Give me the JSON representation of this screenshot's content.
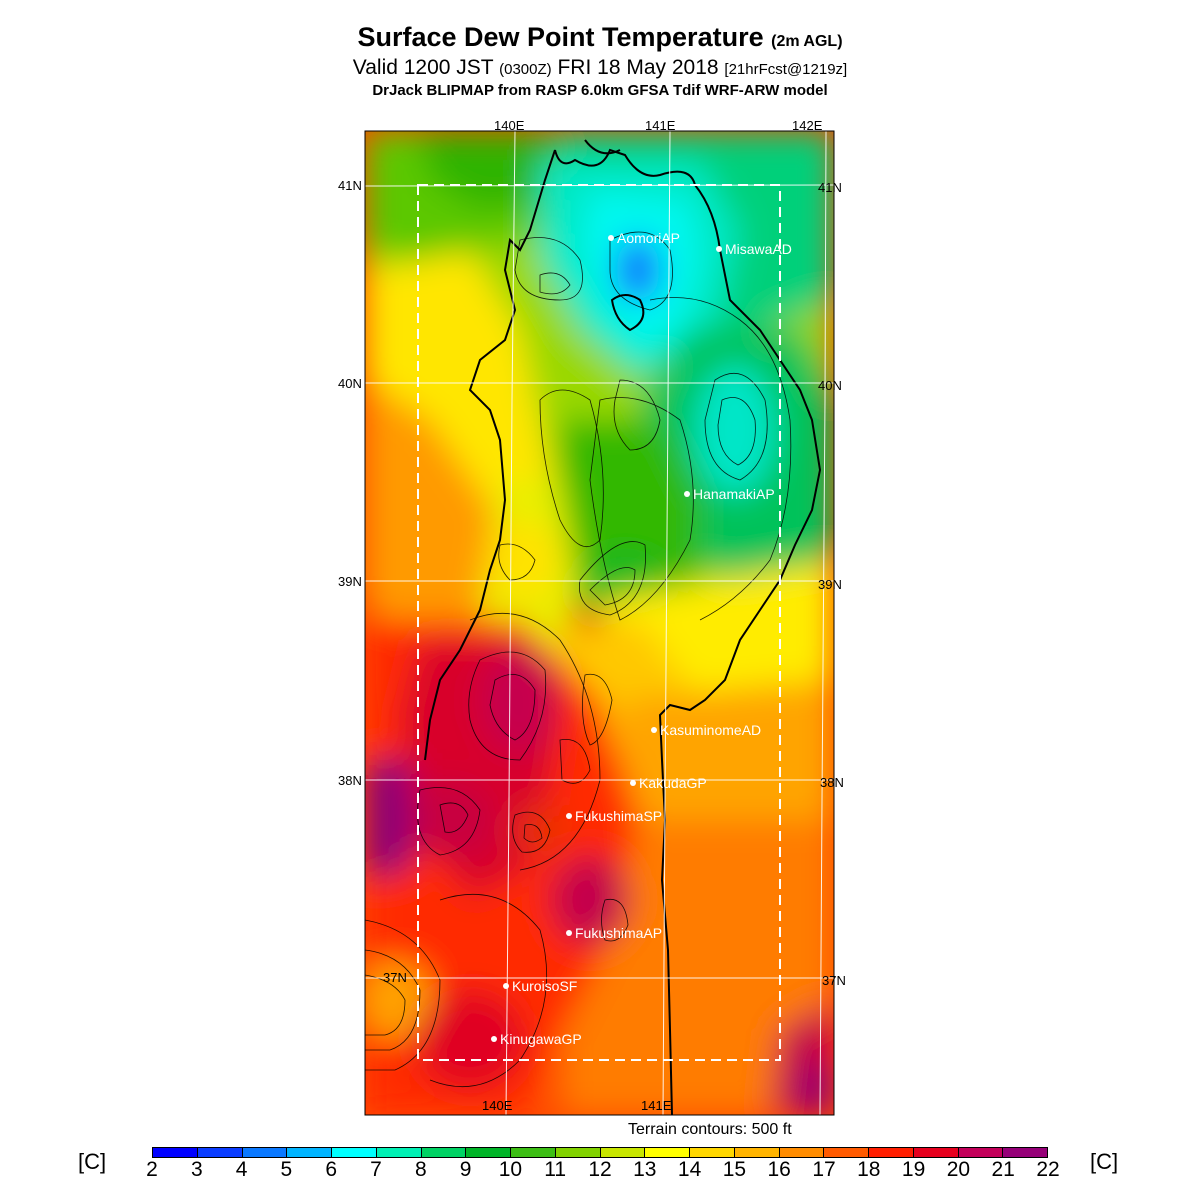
{
  "title": {
    "main": "Surface Dew Point Temperature",
    "main_suffix": "(2m AGL)",
    "valid_prefix": "Valid 1200 JST",
    "valid_utc": "(0300Z)",
    "valid_date": "FRI 18 May 2018",
    "forecast": "[21hrFcst@1219z]",
    "model": "DrJack BLIPMAP from RASP 6.0km GFSA Tdif WRF-ARW model"
  },
  "map": {
    "lon_labels": {
      "top": [
        "140E",
        "141E",
        "142E"
      ],
      "bottom": [
        "140E",
        "141E"
      ]
    },
    "lat_labels": [
      "41N",
      "40N",
      "39N",
      "38N",
      "37N"
    ],
    "stations": [
      "AomoriAP",
      "MisawaAD",
      "HanamakiAP",
      "KasuminomeAD",
      "KakudaGP",
      "FukushimaSP",
      "FukushimaAP",
      "KuroisoSF",
      "KinugawaGP"
    ]
  },
  "terrain_note": "Terrain contours: 500 ft",
  "colorbar": {
    "unit": "[C]",
    "ticks": [
      "2",
      "3",
      "4",
      "5",
      "6",
      "7",
      "8",
      "9",
      "10",
      "11",
      "12",
      "13",
      "14",
      "15",
      "16",
      "17",
      "18",
      "19",
      "20",
      "21",
      "22"
    ],
    "colors": [
      "#0000ff",
      "#0a3cff",
      "#0a78ff",
      "#00b4ff",
      "#00ffff",
      "#00f0b4",
      "#00d264",
      "#00b428",
      "#3cbe14",
      "#82d200",
      "#c8e600",
      "#ffff00",
      "#ffd700",
      "#ffb400",
      "#ff8c00",
      "#ff5a00",
      "#ff1e00",
      "#e6001e",
      "#c3005a",
      "#960078"
    ]
  }
}
